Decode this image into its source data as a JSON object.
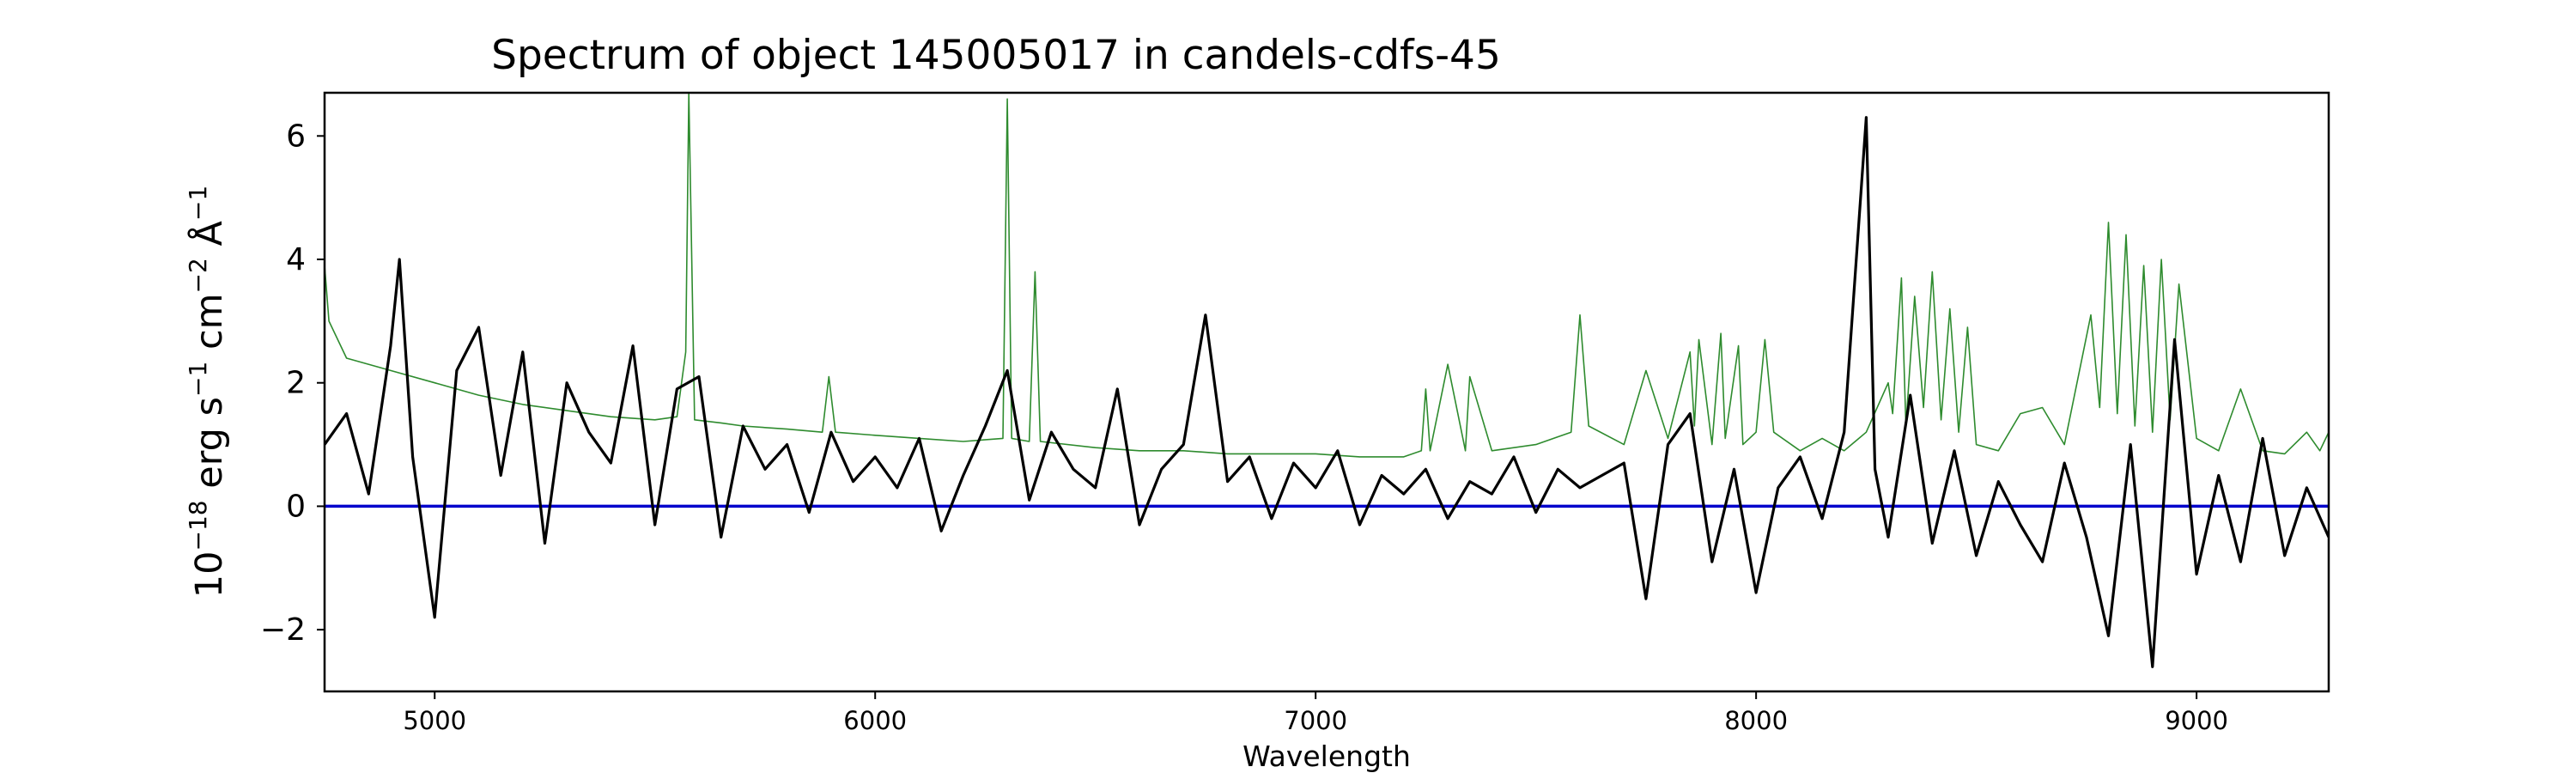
{
  "chart_data": {
    "type": "line",
    "title": "Spectrum of object 145005017 in candels-cdfs-45",
    "xlabel": "Wavelength",
    "ylabel_base": "10",
    "ylabel_exp": "−18",
    "ylabel_text": " erg s",
    "ylabel_exp2": "−1",
    "ylabel_text2": " cm",
    "ylabel_exp3": "−2",
    "ylabel_text3": " Å",
    "ylabel_exp4": "−1",
    "xlim": [
      4750,
      9300
    ],
    "ylim": [
      -3,
      6.7
    ],
    "x_ticks": [
      5000,
      6000,
      7000,
      8000,
      9000
    ],
    "x_tick_labels": [
      "5000",
      "6000",
      "7000",
      "8000",
      "9000"
    ],
    "y_ticks": [
      -2,
      0,
      2,
      4,
      6
    ],
    "y_tick_labels": [
      "−2",
      "0",
      "2",
      "4",
      "6"
    ],
    "grid": false,
    "series": [
      {
        "role": "flux",
        "color": "#000000",
        "x": [
          4750,
          4800,
          4850,
          4900,
          4920,
          4950,
          5000,
          5050,
          5100,
          5150,
          5200,
          5250,
          5300,
          5350,
          5400,
          5450,
          5500,
          5550,
          5600,
          5650,
          5700,
          5750,
          5800,
          5850,
          5900,
          5950,
          6000,
          6050,
          6100,
          6150,
          6200,
          6250,
          6300,
          6350,
          6400,
          6450,
          6500,
          6550,
          6600,
          6650,
          6700,
          6750,
          6800,
          6850,
          6900,
          6950,
          7000,
          7050,
          7100,
          7150,
          7200,
          7250,
          7300,
          7350,
          7400,
          7450,
          7500,
          7550,
          7600,
          7650,
          7700,
          7750,
          7800,
          7850,
          7900,
          7950,
          8000,
          8050,
          8100,
          8150,
          8200,
          8250,
          8270,
          8300,
          8350,
          8400,
          8450,
          8500,
          8550,
          8600,
          8650,
          8700,
          8750,
          8800,
          8850,
          8900,
          8950,
          9000,
          9050,
          9100,
          9150,
          9200,
          9250,
          9300
        ],
        "y": [
          1.0,
          1.5,
          0.2,
          2.6,
          4.0,
          0.8,
          -1.8,
          2.2,
          2.9,
          0.5,
          2.5,
          -0.6,
          2.0,
          1.2,
          0.7,
          2.6,
          -0.3,
          1.9,
          2.1,
          -0.5,
          1.3,
          0.6,
          1.0,
          -0.1,
          1.2,
          0.4,
          0.8,
          0.3,
          1.1,
          -0.4,
          0.5,
          1.3,
          2.2,
          0.1,
          1.2,
          0.6,
          0.3,
          1.9,
          -0.3,
          0.6,
          1.0,
          3.1,
          0.4,
          0.8,
          -0.2,
          0.7,
          0.3,
          0.9,
          -0.3,
          0.5,
          0.2,
          0.6,
          -0.2,
          0.4,
          0.2,
          0.8,
          -0.1,
          0.6,
          0.3,
          0.5,
          0.7,
          -1.5,
          1.0,
          1.5,
          -0.9,
          0.6,
          -1.4,
          0.3,
          0.8,
          -0.2,
          1.2,
          6.3,
          0.6,
          -0.5,
          1.8,
          -0.6,
          0.9,
          -0.8,
          0.4,
          -0.3,
          -0.9,
          0.7,
          -0.5,
          -2.1,
          1.0,
          -2.6,
          2.7,
          -1.1,
          0.5,
          -0.9,
          1.1,
          -0.8,
          0.3,
          -0.5
        ]
      },
      {
        "role": "error",
        "color": "#2e8b2e",
        "x": [
          4750,
          4760,
          4800,
          4900,
          5000,
          5100,
          5200,
          5300,
          5400,
          5500,
          5550,
          5570,
          5577,
          5590,
          5650,
          5700,
          5800,
          5880,
          5895,
          5910,
          6000,
          6100,
          6200,
          6290,
          6300,
          6310,
          6350,
          6363,
          6375,
          6500,
          6600,
          6700,
          6800,
          6900,
          7000,
          7100,
          7200,
          7240,
          7250,
          7260,
          7300,
          7340,
          7350,
          7400,
          7500,
          7580,
          7600,
          7620,
          7700,
          7750,
          7800,
          7850,
          7860,
          7870,
          7900,
          7920,
          7930,
          7960,
          7970,
          8000,
          8020,
          8040,
          8100,
          8150,
          8200,
          8250,
          8300,
          8310,
          8330,
          8340,
          8360,
          8380,
          8400,
          8420,
          8440,
          8460,
          8480,
          8500,
          8550,
          8600,
          8650,
          8700,
          8760,
          8780,
          8800,
          8820,
          8840,
          8860,
          8880,
          8900,
          8920,
          8940,
          8960,
          9000,
          9050,
          9100,
          9150,
          9200,
          9250,
          9280,
          9300
        ],
        "y": [
          3.9,
          3.0,
          2.4,
          2.2,
          2.0,
          1.8,
          1.65,
          1.55,
          1.45,
          1.4,
          1.45,
          2.5,
          6.7,
          1.4,
          1.35,
          1.3,
          1.25,
          1.2,
          2.1,
          1.2,
          1.15,
          1.1,
          1.05,
          1.1,
          6.6,
          1.1,
          1.05,
          3.8,
          1.05,
          0.95,
          0.9,
          0.9,
          0.85,
          0.85,
          0.85,
          0.8,
          0.8,
          0.9,
          1.9,
          0.9,
          2.3,
          0.9,
          2.1,
          0.9,
          1.0,
          1.2,
          3.1,
          1.3,
          1.0,
          2.2,
          1.1,
          2.5,
          1.3,
          2.7,
          1.0,
          2.8,
          1.1,
          2.6,
          1.0,
          1.2,
          2.7,
          1.2,
          0.9,
          1.1,
          0.9,
          1.2,
          2.0,
          1.5,
          3.7,
          1.3,
          3.4,
          1.6,
          3.8,
          1.4,
          3.2,
          1.2,
          2.9,
          1.0,
          0.9,
          1.5,
          1.6,
          1.0,
          3.1,
          1.6,
          4.6,
          1.5,
          4.4,
          1.3,
          3.9,
          1.2,
          4.0,
          1.4,
          3.6,
          1.1,
          0.9,
          1.9,
          0.9,
          0.85,
          1.2,
          0.9,
          1.2
        ]
      },
      {
        "role": "zero",
        "color": "#0000cc",
        "x": [
          4750,
          9300
        ],
        "y": [
          0,
          0
        ]
      }
    ]
  }
}
